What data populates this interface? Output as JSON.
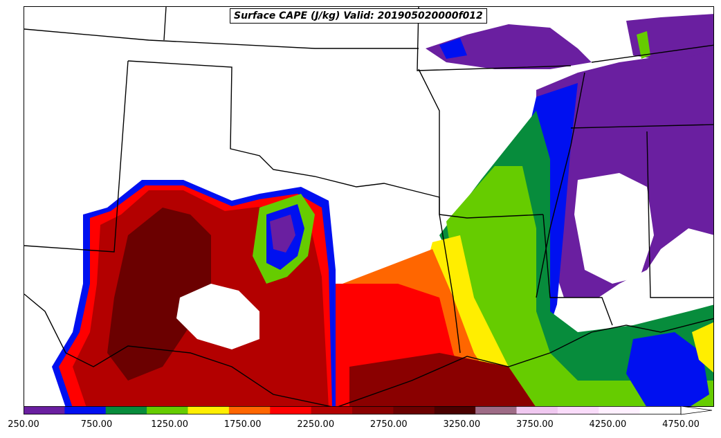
{
  "title": "Surface CAPE (J/kg) Valid: 201905020000f012",
  "colorbar": {
    "levels": [
      250,
      500,
      750,
      1000,
      1250,
      1500,
      1750,
      2000,
      2250,
      2500,
      2750,
      3000,
      3250,
      3500,
      3750,
      4000,
      4250,
      4500,
      4750
    ],
    "colors": [
      "#6a1fa0",
      "#0010f0",
      "#078c3c",
      "#66cc00",
      "#ffee00",
      "#ff6600",
      "#ff0000",
      "#b30000",
      "#8a0000",
      "#6b0000",
      "#4a0000",
      "#9e6b86",
      "#f0c8f0",
      "#fadcfa",
      "#fff0ff",
      "#ffffff"
    ],
    "tick_labels": [
      "250.00",
      "750.00",
      "1250.00",
      "1750.00",
      "2250.00",
      "2750.00",
      "3250.00",
      "3750.00",
      "4250.00",
      "4750.00"
    ]
  }
}
